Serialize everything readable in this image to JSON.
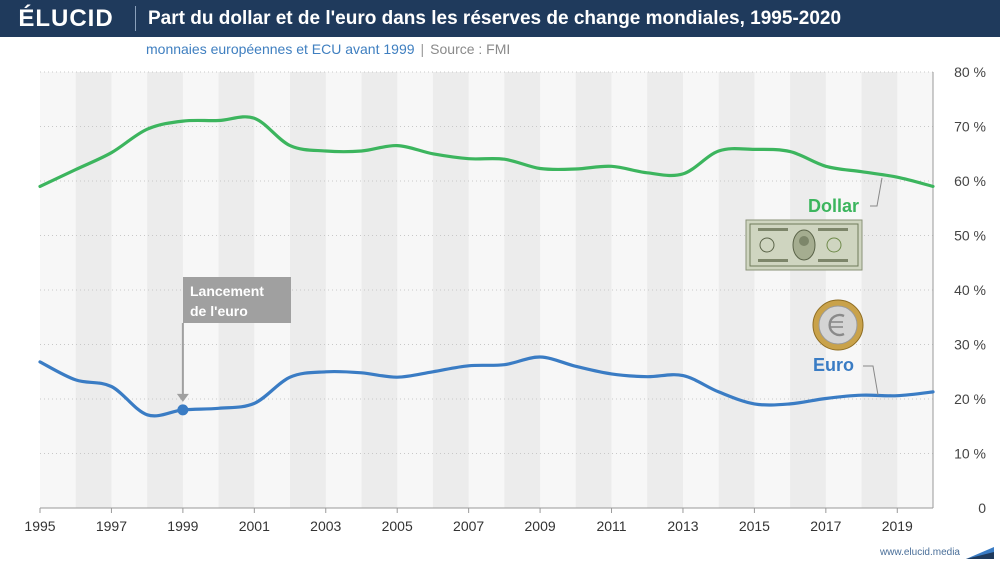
{
  "brand": {
    "logo": "ÉLUCID",
    "url": "www.elucid.media"
  },
  "header": {
    "title": "Part du dollar et de l'euro dans les réserves de change mondiales, 1995-2020",
    "subtitle_note": "monnaies européennes et ECU avant 1999",
    "subtitle_separator": "|",
    "subtitle_source": "Source : FMI"
  },
  "colors": {
    "dollar": "#3cb55e",
    "euro": "#3a7cc4",
    "header": "#1f3a5c",
    "band": "#ececec",
    "annotation_box": "#a0a0a0"
  },
  "icons": {
    "dollar_bill": "dollar-bill-icon",
    "euro_coin": "euro-coin-icon"
  },
  "chart_data": {
    "type": "line",
    "xlim": [
      1995,
      2020
    ],
    "ylim": [
      0,
      80
    ],
    "x_ticks": [
      "1995",
      "1997",
      "1999",
      "2001",
      "2003",
      "2005",
      "2007",
      "2009",
      "2011",
      "2013",
      "2015",
      "2017",
      "2019"
    ],
    "y_ticks": [
      {
        "value": 0,
        "label": "0"
      },
      {
        "value": 10,
        "label": "10 %"
      },
      {
        "value": 20,
        "label": "20 %"
      },
      {
        "value": 30,
        "label": "30 %"
      },
      {
        "value": 40,
        "label": "40 %"
      },
      {
        "value": 50,
        "label": "50 %"
      },
      {
        "value": 60,
        "label": "60 %"
      },
      {
        "value": 70,
        "label": "70 %"
      },
      {
        "value": 80,
        "label": "80 %"
      }
    ],
    "x": [
      1995,
      1996,
      1997,
      1998,
      1999,
      2000,
      2001,
      2002,
      2003,
      2004,
      2005,
      2006,
      2007,
      2008,
      2009,
      2010,
      2011,
      2012,
      2013,
      2014,
      2015,
      2016,
      2017,
      2018,
      2019,
      2020
    ],
    "series": [
      {
        "name": "Dollar",
        "color": "#3cb55e",
        "values": [
          59.0,
          62.1,
          65.2,
          69.5,
          71.0,
          71.1,
          71.5,
          66.5,
          65.5,
          65.5,
          66.5,
          65.0,
          64.1,
          64.0,
          62.3,
          62.2,
          62.7,
          61.5,
          61.3,
          65.5,
          65.8,
          65.4,
          62.7,
          61.7,
          60.7,
          59.0
        ]
      },
      {
        "name": "Euro",
        "color": "#3a7cc4",
        "values": [
          26.8,
          23.5,
          22.3,
          17.1,
          18.0,
          18.3,
          19.2,
          24.0,
          25.0,
          24.8,
          24.0,
          25.0,
          26.1,
          26.3,
          27.7,
          26.0,
          24.6,
          24.1,
          24.3,
          21.3,
          19.1,
          19.1,
          20.1,
          20.7,
          20.6,
          21.3
        ]
      }
    ],
    "annotations": [
      {
        "text_lines": [
          "Lancement",
          "de l'euro"
        ],
        "x": 1999,
        "y": 18.0
      }
    ],
    "alternating_year_bands": true,
    "grid": "horizontal dotted"
  }
}
